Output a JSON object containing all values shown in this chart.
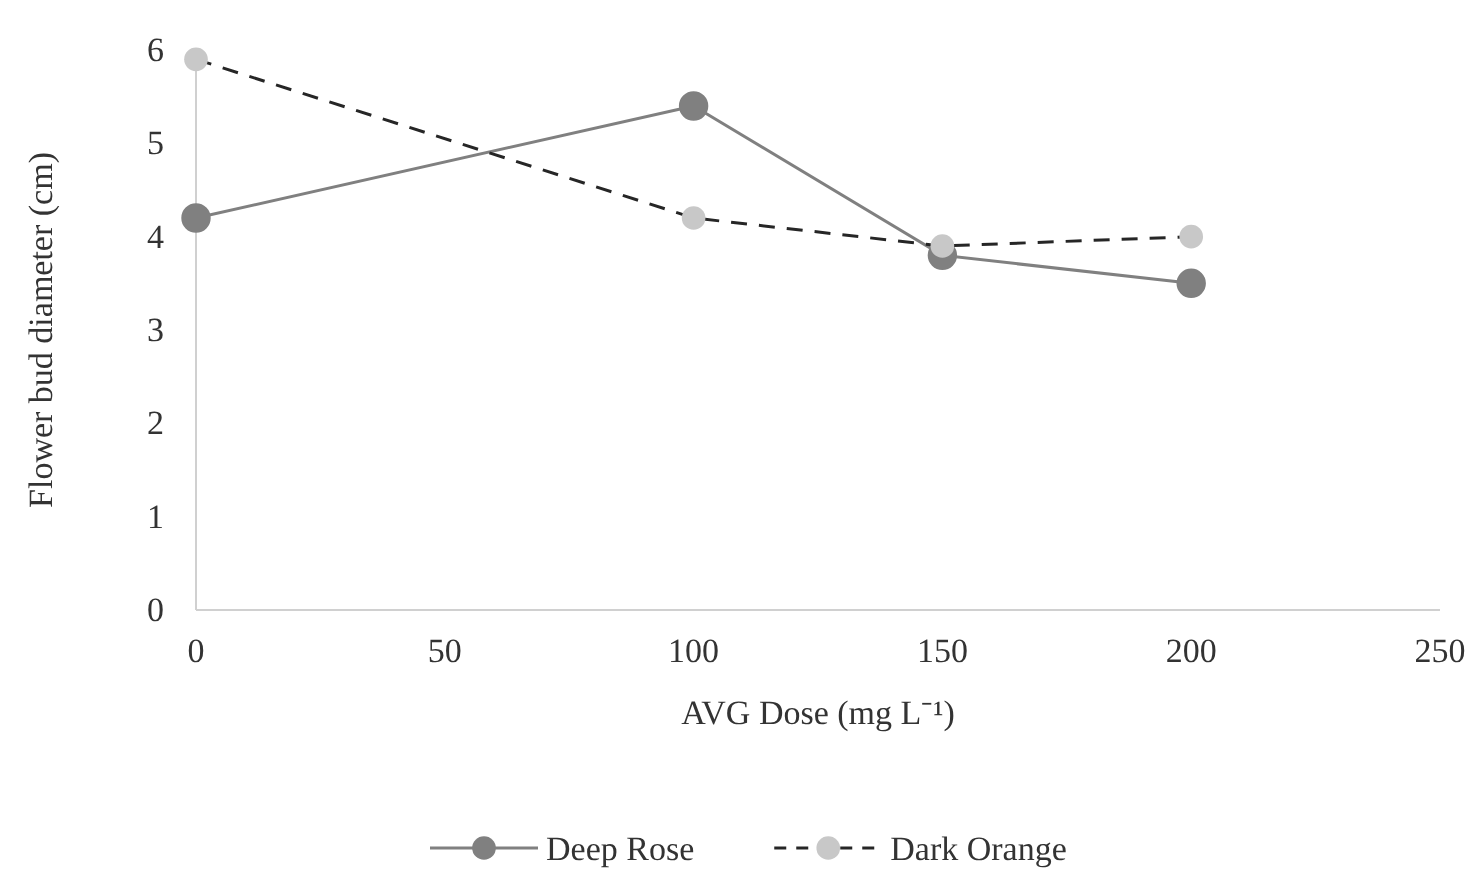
{
  "chart_data": {
    "type": "line",
    "xlabel": "AVG Dose (mg L⁻¹)",
    "ylabel": "Flower bud diameter (cm)",
    "x": [
      0,
      100,
      150,
      200
    ],
    "series": [
      {
        "name": "Deep Rose",
        "color": "#808080",
        "line_style": "solid",
        "values": [
          4.2,
          5.4,
          3.8,
          3.5
        ]
      },
      {
        "name": "Dark Orange",
        "color": "#c8c8c8",
        "line_style": "dashed",
        "values": [
          5.9,
          4.2,
          3.9,
          4.0
        ]
      }
    ],
    "xlim": [
      0,
      250
    ],
    "xticks": [
      0,
      50,
      100,
      150,
      200,
      250
    ],
    "ylim": [
      0,
      6
    ],
    "yticks": [
      0,
      1,
      2,
      3,
      4,
      5,
      6
    ],
    "grid": false,
    "legend": "bottom",
    "marker": "circle"
  }
}
